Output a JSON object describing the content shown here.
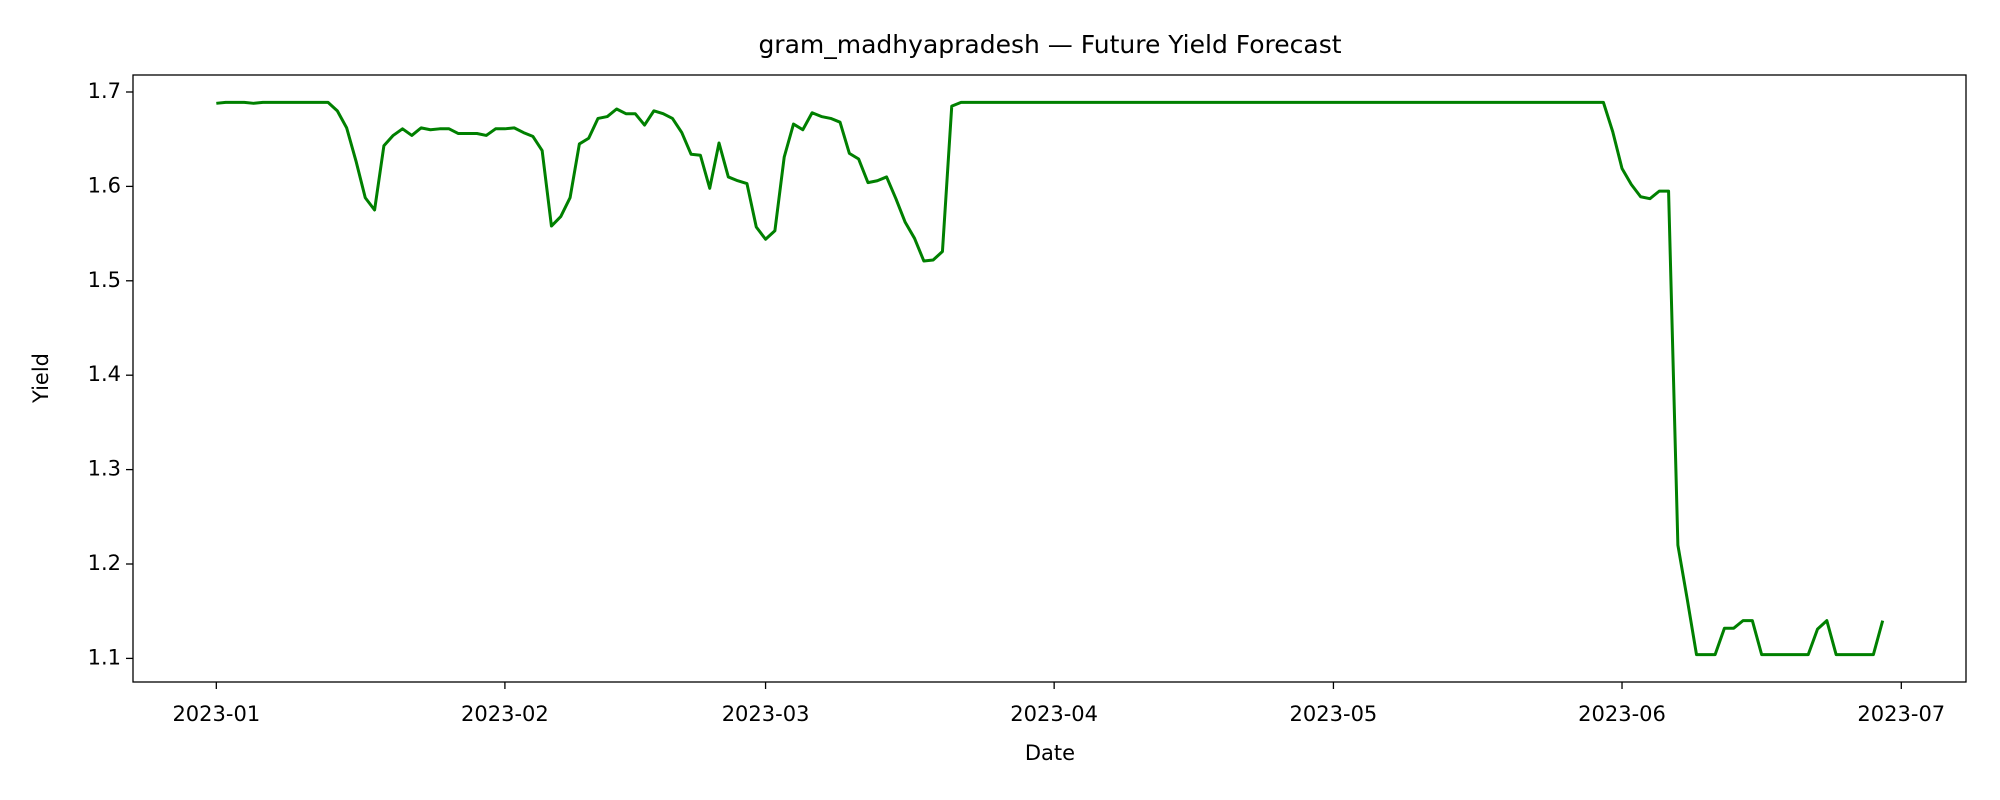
{
  "chart_data": {
    "type": "line",
    "title": "gram_madhyapradesh — Future Yield Forecast",
    "x_label": "Date",
    "y_label": "Yield",
    "x": [
      0,
      1,
      2,
      3,
      4,
      5,
      6,
      7,
      8,
      9,
      10,
      11,
      12,
      13,
      14,
      15,
      16,
      17,
      18,
      19,
      20,
      21,
      22,
      23,
      24,
      25,
      26,
      27,
      28,
      29,
      30,
      31,
      32,
      33,
      34,
      35,
      36,
      37,
      38,
      39,
      40,
      41,
      42,
      43,
      44,
      45,
      46,
      47,
      48,
      49,
      50,
      51,
      52,
      53,
      54,
      55,
      56,
      57,
      58,
      59,
      60,
      61,
      62,
      63,
      64,
      65,
      66,
      67,
      68,
      69,
      70,
      71,
      72,
      73,
      74,
      75,
      76,
      77,
      78,
      79,
      80,
      149,
      150,
      151,
      152,
      153,
      154,
      155,
      156,
      157,
      158,
      159,
      160,
      161,
      162,
      163,
      164,
      165,
      166,
      167,
      168,
      169,
      170,
      171,
      172,
      173,
      174,
      175,
      176,
      177,
      178,
      179
    ],
    "series": [
      {
        "name": "Yield",
        "color": "#008000",
        "values": [
          1.688,
          1.689,
          1.689,
          1.689,
          1.688,
          1.689,
          1.689,
          1.689,
          1.689,
          1.689,
          1.689,
          1.689,
          1.689,
          1.68,
          1.662,
          1.627,
          1.588,
          1.575,
          1.643,
          1.654,
          1.661,
          1.654,
          1.662,
          1.66,
          1.661,
          1.661,
          1.656,
          1.656,
          1.656,
          1.654,
          1.661,
          1.661,
          1.662,
          1.657,
          1.653,
          1.638,
          1.558,
          1.568,
          1.588,
          1.645,
          1.651,
          1.672,
          1.674,
          1.682,
          1.677,
          1.677,
          1.665,
          1.68,
          1.677,
          1.672,
          1.657,
          1.634,
          1.633,
          1.598,
          1.646,
          1.61,
          1.606,
          1.603,
          1.557,
          1.544,
          1.553,
          1.631,
          1.666,
          1.66,
          1.678,
          1.674,
          1.672,
          1.668,
          1.635,
          1.629,
          1.604,
          1.606,
          1.61,
          1.587,
          1.562,
          1.545,
          1.521,
          1.522,
          1.531,
          1.685,
          1.689,
          1.689,
          1.658,
          1.619,
          1.602,
          1.589,
          1.587,
          1.595,
          1.595,
          1.22,
          1.163,
          1.104,
          1.104,
          1.104,
          1.132,
          1.132,
          1.14,
          1.14,
          1.104,
          1.104,
          1.104,
          1.104,
          1.104,
          1.104,
          1.131,
          1.14,
          1.104,
          1.104,
          1.104,
          1.104,
          1.104,
          1.14
        ]
      }
    ],
    "xlim": [
      -8.95,
      187.95
    ],
    "xticks": [
      {
        "value": 0,
        "label": "2023-01"
      },
      {
        "value": 31,
        "label": "2023-02"
      },
      {
        "value": 59,
        "label": "2023-03"
      },
      {
        "value": 90,
        "label": "2023-04"
      },
      {
        "value": 120,
        "label": "2023-05"
      },
      {
        "value": 151,
        "label": "2023-06"
      },
      {
        "value": 181,
        "label": "2023-07"
      }
    ],
    "ylim": [
      1.075,
      1.718
    ],
    "yticks": [
      1.1,
      1.2,
      1.3,
      1.4,
      1.5,
      1.6,
      1.7
    ],
    "grid": false
  }
}
